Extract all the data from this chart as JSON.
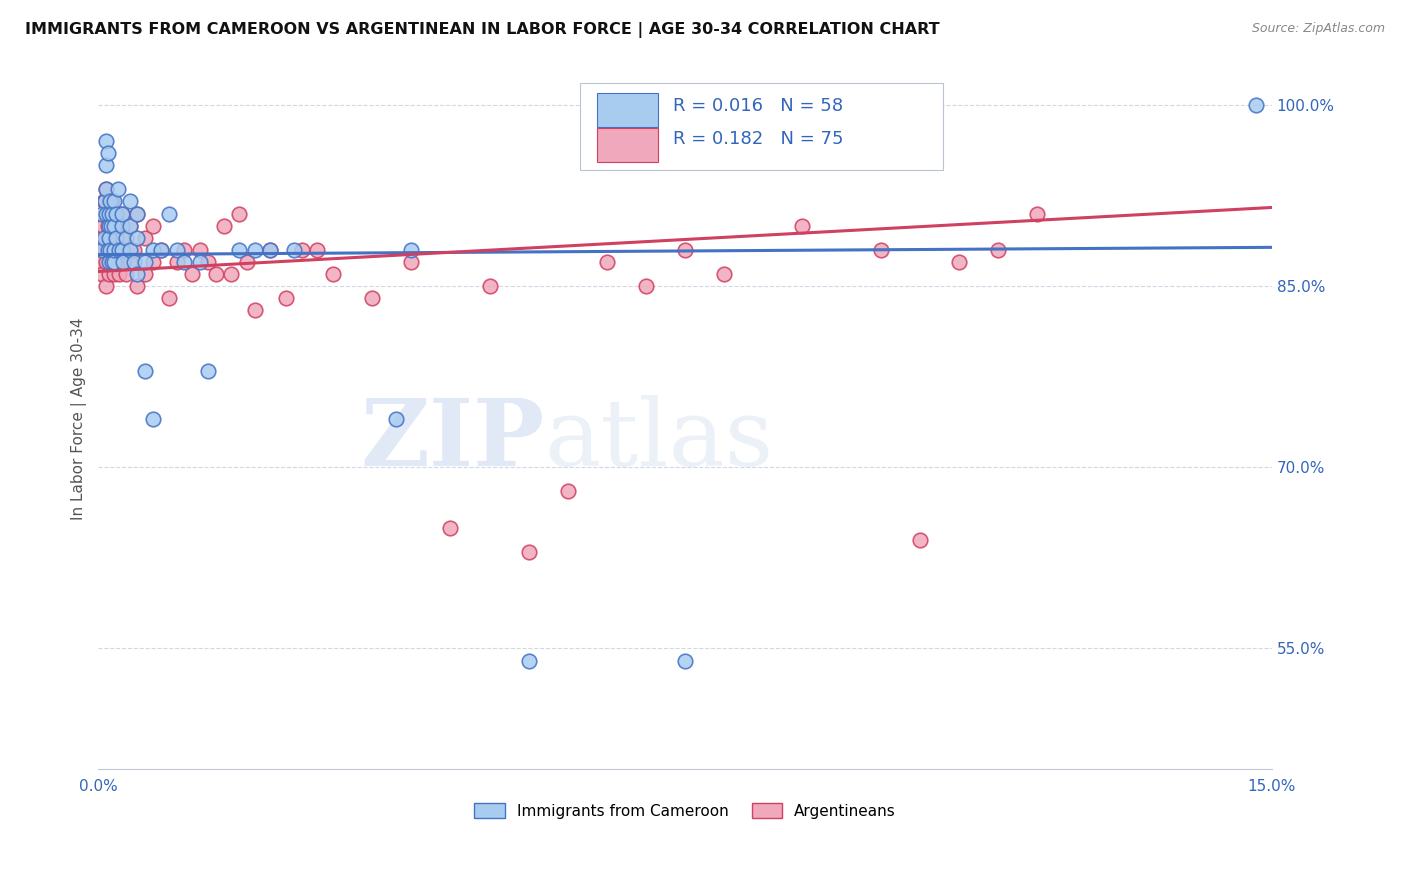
{
  "title": "IMMIGRANTS FROM CAMEROON VS ARGENTINEAN IN LABOR FORCE | AGE 30-34 CORRELATION CHART",
  "source": "Source: ZipAtlas.com",
  "ylabel": "In Labor Force | Age 30-34",
  "xmin": 0.0,
  "xmax": 0.15,
  "ymin": 0.45,
  "ymax": 1.03,
  "yticks": [
    0.55,
    0.7,
    0.85,
    1.0
  ],
  "ytick_labels": [
    "55.0%",
    "70.0%",
    "85.0%",
    "100.0%"
  ],
  "xticks": [
    0.0,
    0.03,
    0.06,
    0.09,
    0.12,
    0.15
  ],
  "xtick_labels": [
    "0.0%",
    "",
    "",
    "",
    "",
    "15.0%"
  ],
  "legend_R_blue": "0.016",
  "legend_N_blue": "58",
  "legend_R_pink": "0.182",
  "legend_N_pink": "75",
  "blue_color": "#A8CCF0",
  "pink_color": "#F0A8BC",
  "trend_blue": "#4472C4",
  "trend_pink": "#D04060",
  "legend_label_blue": "Immigrants from Cameroon",
  "legend_label_pink": "Argentineans",
  "watermark_zip": "ZIP",
  "watermark_atlas": "atlas",
  "blue_x": [
    0.0005,
    0.0005,
    0.0007,
    0.0008,
    0.001,
    0.001,
    0.001,
    0.001,
    0.0012,
    0.0012,
    0.0013,
    0.0013,
    0.0014,
    0.0014,
    0.0015,
    0.0015,
    0.0016,
    0.0017,
    0.0018,
    0.002,
    0.002,
    0.002,
    0.002,
    0.0022,
    0.0023,
    0.0025,
    0.0027,
    0.003,
    0.003,
    0.003,
    0.0032,
    0.0035,
    0.004,
    0.004,
    0.004,
    0.0045,
    0.005,
    0.005,
    0.005,
    0.006,
    0.006,
    0.007,
    0.007,
    0.008,
    0.009,
    0.01,
    0.011,
    0.013,
    0.014,
    0.018,
    0.02,
    0.022,
    0.025,
    0.038,
    0.04,
    0.055,
    0.075,
    0.148
  ],
  "blue_y": [
    0.88,
    0.91,
    0.89,
    0.92,
    0.95,
    0.93,
    0.91,
    0.97,
    0.88,
    0.96,
    0.9,
    0.87,
    0.91,
    0.89,
    0.92,
    0.88,
    0.9,
    0.87,
    0.91,
    0.9,
    0.87,
    0.92,
    0.88,
    0.91,
    0.89,
    0.93,
    0.88,
    0.9,
    0.88,
    0.91,
    0.87,
    0.89,
    0.92,
    0.88,
    0.9,
    0.87,
    0.91,
    0.86,
    0.89,
    0.87,
    0.78,
    0.88,
    0.74,
    0.88,
    0.91,
    0.88,
    0.87,
    0.87,
    0.78,
    0.88,
    0.88,
    0.88,
    0.88,
    0.74,
    0.88,
    0.54,
    0.54,
    1.0
  ],
  "pink_x": [
    0.0003,
    0.0004,
    0.0005,
    0.0006,
    0.0007,
    0.0008,
    0.001,
    0.001,
    0.001,
    0.001,
    0.001,
    0.0012,
    0.0012,
    0.0013,
    0.0014,
    0.0015,
    0.0015,
    0.0016,
    0.0017,
    0.0018,
    0.002,
    0.002,
    0.002,
    0.002,
    0.0022,
    0.0024,
    0.0026,
    0.003,
    0.003,
    0.003,
    0.0032,
    0.0035,
    0.004,
    0.004,
    0.0045,
    0.005,
    0.005,
    0.006,
    0.006,
    0.007,
    0.007,
    0.008,
    0.009,
    0.01,
    0.011,
    0.012,
    0.013,
    0.014,
    0.015,
    0.016,
    0.017,
    0.018,
    0.019,
    0.02,
    0.022,
    0.024,
    0.026,
    0.028,
    0.03,
    0.035,
    0.04,
    0.045,
    0.05,
    0.055,
    0.06,
    0.065,
    0.07,
    0.075,
    0.08,
    0.09,
    0.1,
    0.105,
    0.11,
    0.115,
    0.12
  ],
  "pink_y": [
    0.87,
    0.89,
    0.86,
    0.9,
    0.92,
    0.88,
    0.91,
    0.93,
    0.87,
    0.89,
    0.85,
    0.9,
    0.88,
    0.86,
    0.92,
    0.89,
    0.87,
    0.9,
    0.88,
    0.92,
    0.89,
    0.87,
    0.91,
    0.86,
    0.9,
    0.88,
    0.86,
    0.91,
    0.87,
    0.89,
    0.88,
    0.86,
    0.9,
    0.87,
    0.88,
    0.91,
    0.85,
    0.89,
    0.86,
    0.9,
    0.87,
    0.88,
    0.84,
    0.87,
    0.88,
    0.86,
    0.88,
    0.87,
    0.86,
    0.9,
    0.86,
    0.91,
    0.87,
    0.83,
    0.88,
    0.84,
    0.88,
    0.88,
    0.86,
    0.84,
    0.87,
    0.65,
    0.85,
    0.63,
    0.68,
    0.87,
    0.85,
    0.88,
    0.86,
    0.9,
    0.88,
    0.64,
    0.87,
    0.88,
    0.91
  ]
}
